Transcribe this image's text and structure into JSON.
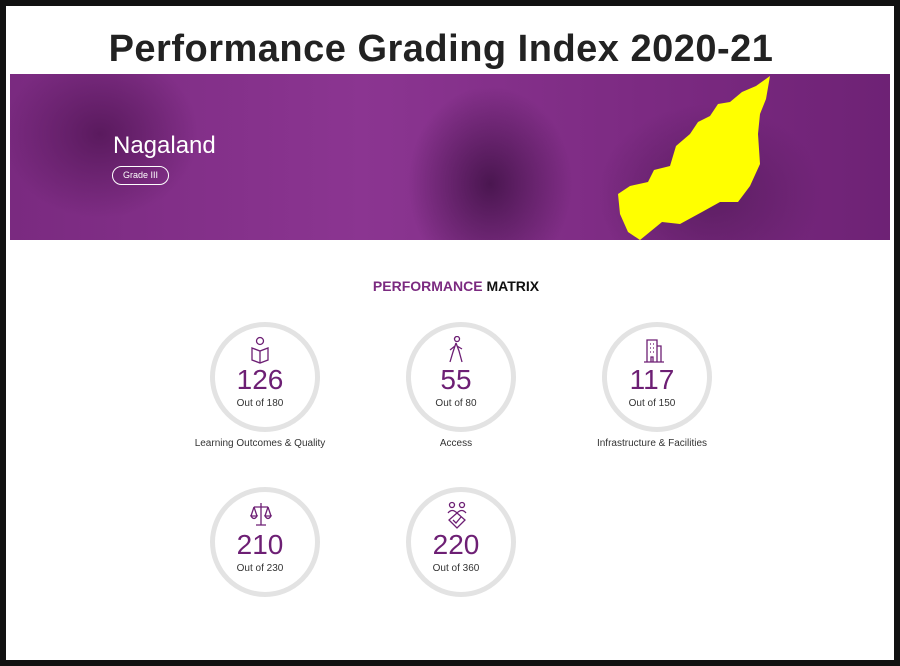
{
  "header": {
    "title": "Performance Grading Index 2020-21"
  },
  "banner": {
    "state": "Nagaland",
    "grade": "Grade III"
  },
  "section": {
    "heading_highlight": "PERFORMANCE",
    "heading_rest": "MATRIX"
  },
  "metrics": [
    {
      "score": 126,
      "out_of": "Out of 180",
      "label": "Learning Outcomes & Quality"
    },
    {
      "score": 55,
      "out_of": "Out of 80",
      "label": "Access"
    },
    {
      "score": 117,
      "out_of": "Out of 150",
      "label": "Infrastructure & Facilities"
    },
    {
      "score": 210,
      "out_of": "Out of 230",
      "label": ""
    },
    {
      "score": 220,
      "out_of": "Out of 360",
      "label": ""
    }
  ]
}
